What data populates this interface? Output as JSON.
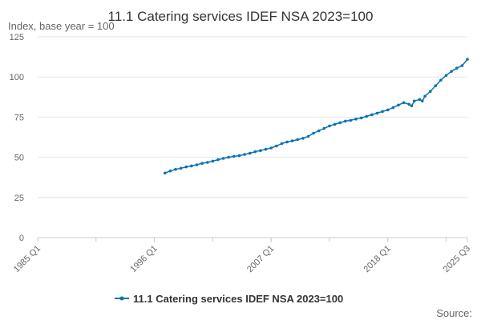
{
  "chart_data": {
    "type": "line",
    "title": "11.1 Catering services IDEF NSA 2023=100",
    "ylabel": "Index, base year = 100",
    "xlabel": "",
    "ylim": [
      0,
      125
    ],
    "yticks": [
      0,
      25,
      50,
      75,
      100,
      125
    ],
    "xlim": [
      1985.0,
      2025.5
    ],
    "xticks": [
      {
        "label": "1985 Q1",
        "x": 1985.0
      },
      {
        "label": "1996 Q1",
        "x": 1996.0
      },
      {
        "label": "2007 Q1",
        "x": 2007.0
      },
      {
        "label": "2018 Q1",
        "x": 2018.0
      },
      {
        "label": "2025 Q3",
        "x": 2025.5
      }
    ],
    "grid": true,
    "legend_position": "bottom",
    "series": [
      {
        "name": "11.1 Catering services IDEF NSA 2023=100",
        "color": "#0b73b3",
        "points": [
          [
            1997.0,
            40.2
          ],
          [
            1997.5,
            41.5
          ],
          [
            1998.0,
            42.5
          ],
          [
            1998.5,
            43.2
          ],
          [
            1999.0,
            44.0
          ],
          [
            1999.5,
            44.6
          ],
          [
            2000.0,
            45.3
          ],
          [
            2000.5,
            46.2
          ],
          [
            2001.0,
            46.8
          ],
          [
            2001.5,
            47.6
          ],
          [
            2002.0,
            48.5
          ],
          [
            2002.5,
            49.3
          ],
          [
            2003.0,
            50.0
          ],
          [
            2003.5,
            50.6
          ],
          [
            2004.0,
            51.0
          ],
          [
            2004.5,
            51.8
          ],
          [
            2005.0,
            52.5
          ],
          [
            2005.5,
            53.5
          ],
          [
            2006.0,
            54.2
          ],
          [
            2006.5,
            55.0
          ],
          [
            2007.0,
            55.8
          ],
          [
            2007.5,
            57.0
          ],
          [
            2008.0,
            58.5
          ],
          [
            2008.5,
            59.5
          ],
          [
            2009.0,
            60.2
          ],
          [
            2009.5,
            61.0
          ],
          [
            2010.0,
            61.8
          ],
          [
            2010.5,
            63.0
          ],
          [
            2011.0,
            65.0
          ],
          [
            2011.5,
            66.5
          ],
          [
            2012.0,
            68.0
          ],
          [
            2012.5,
            69.5
          ],
          [
            2013.0,
            70.5
          ],
          [
            2013.5,
            71.5
          ],
          [
            2014.0,
            72.5
          ],
          [
            2014.5,
            73.0
          ],
          [
            2015.0,
            73.8
          ],
          [
            2015.5,
            74.5
          ],
          [
            2016.0,
            75.5
          ],
          [
            2016.5,
            76.5
          ],
          [
            2017.0,
            77.5
          ],
          [
            2017.5,
            78.5
          ],
          [
            2018.0,
            79.5
          ],
          [
            2018.5,
            81.0
          ],
          [
            2019.0,
            82.5
          ],
          [
            2019.5,
            84.0
          ],
          [
            2020.0,
            83.0
          ],
          [
            2020.25,
            82.0
          ],
          [
            2020.5,
            85.0
          ],
          [
            2021.0,
            86.0
          ],
          [
            2021.25,
            85.0
          ],
          [
            2021.5,
            88.0
          ],
          [
            2022.0,
            91.0
          ],
          [
            2022.5,
            94.5
          ],
          [
            2023.0,
            98.0
          ],
          [
            2023.5,
            101.0
          ],
          [
            2024.0,
            103.5
          ],
          [
            2024.5,
            105.5
          ],
          [
            2025.0,
            107.0
          ],
          [
            2025.5,
            111.0
          ]
        ]
      }
    ],
    "source_label": "Source:"
  }
}
